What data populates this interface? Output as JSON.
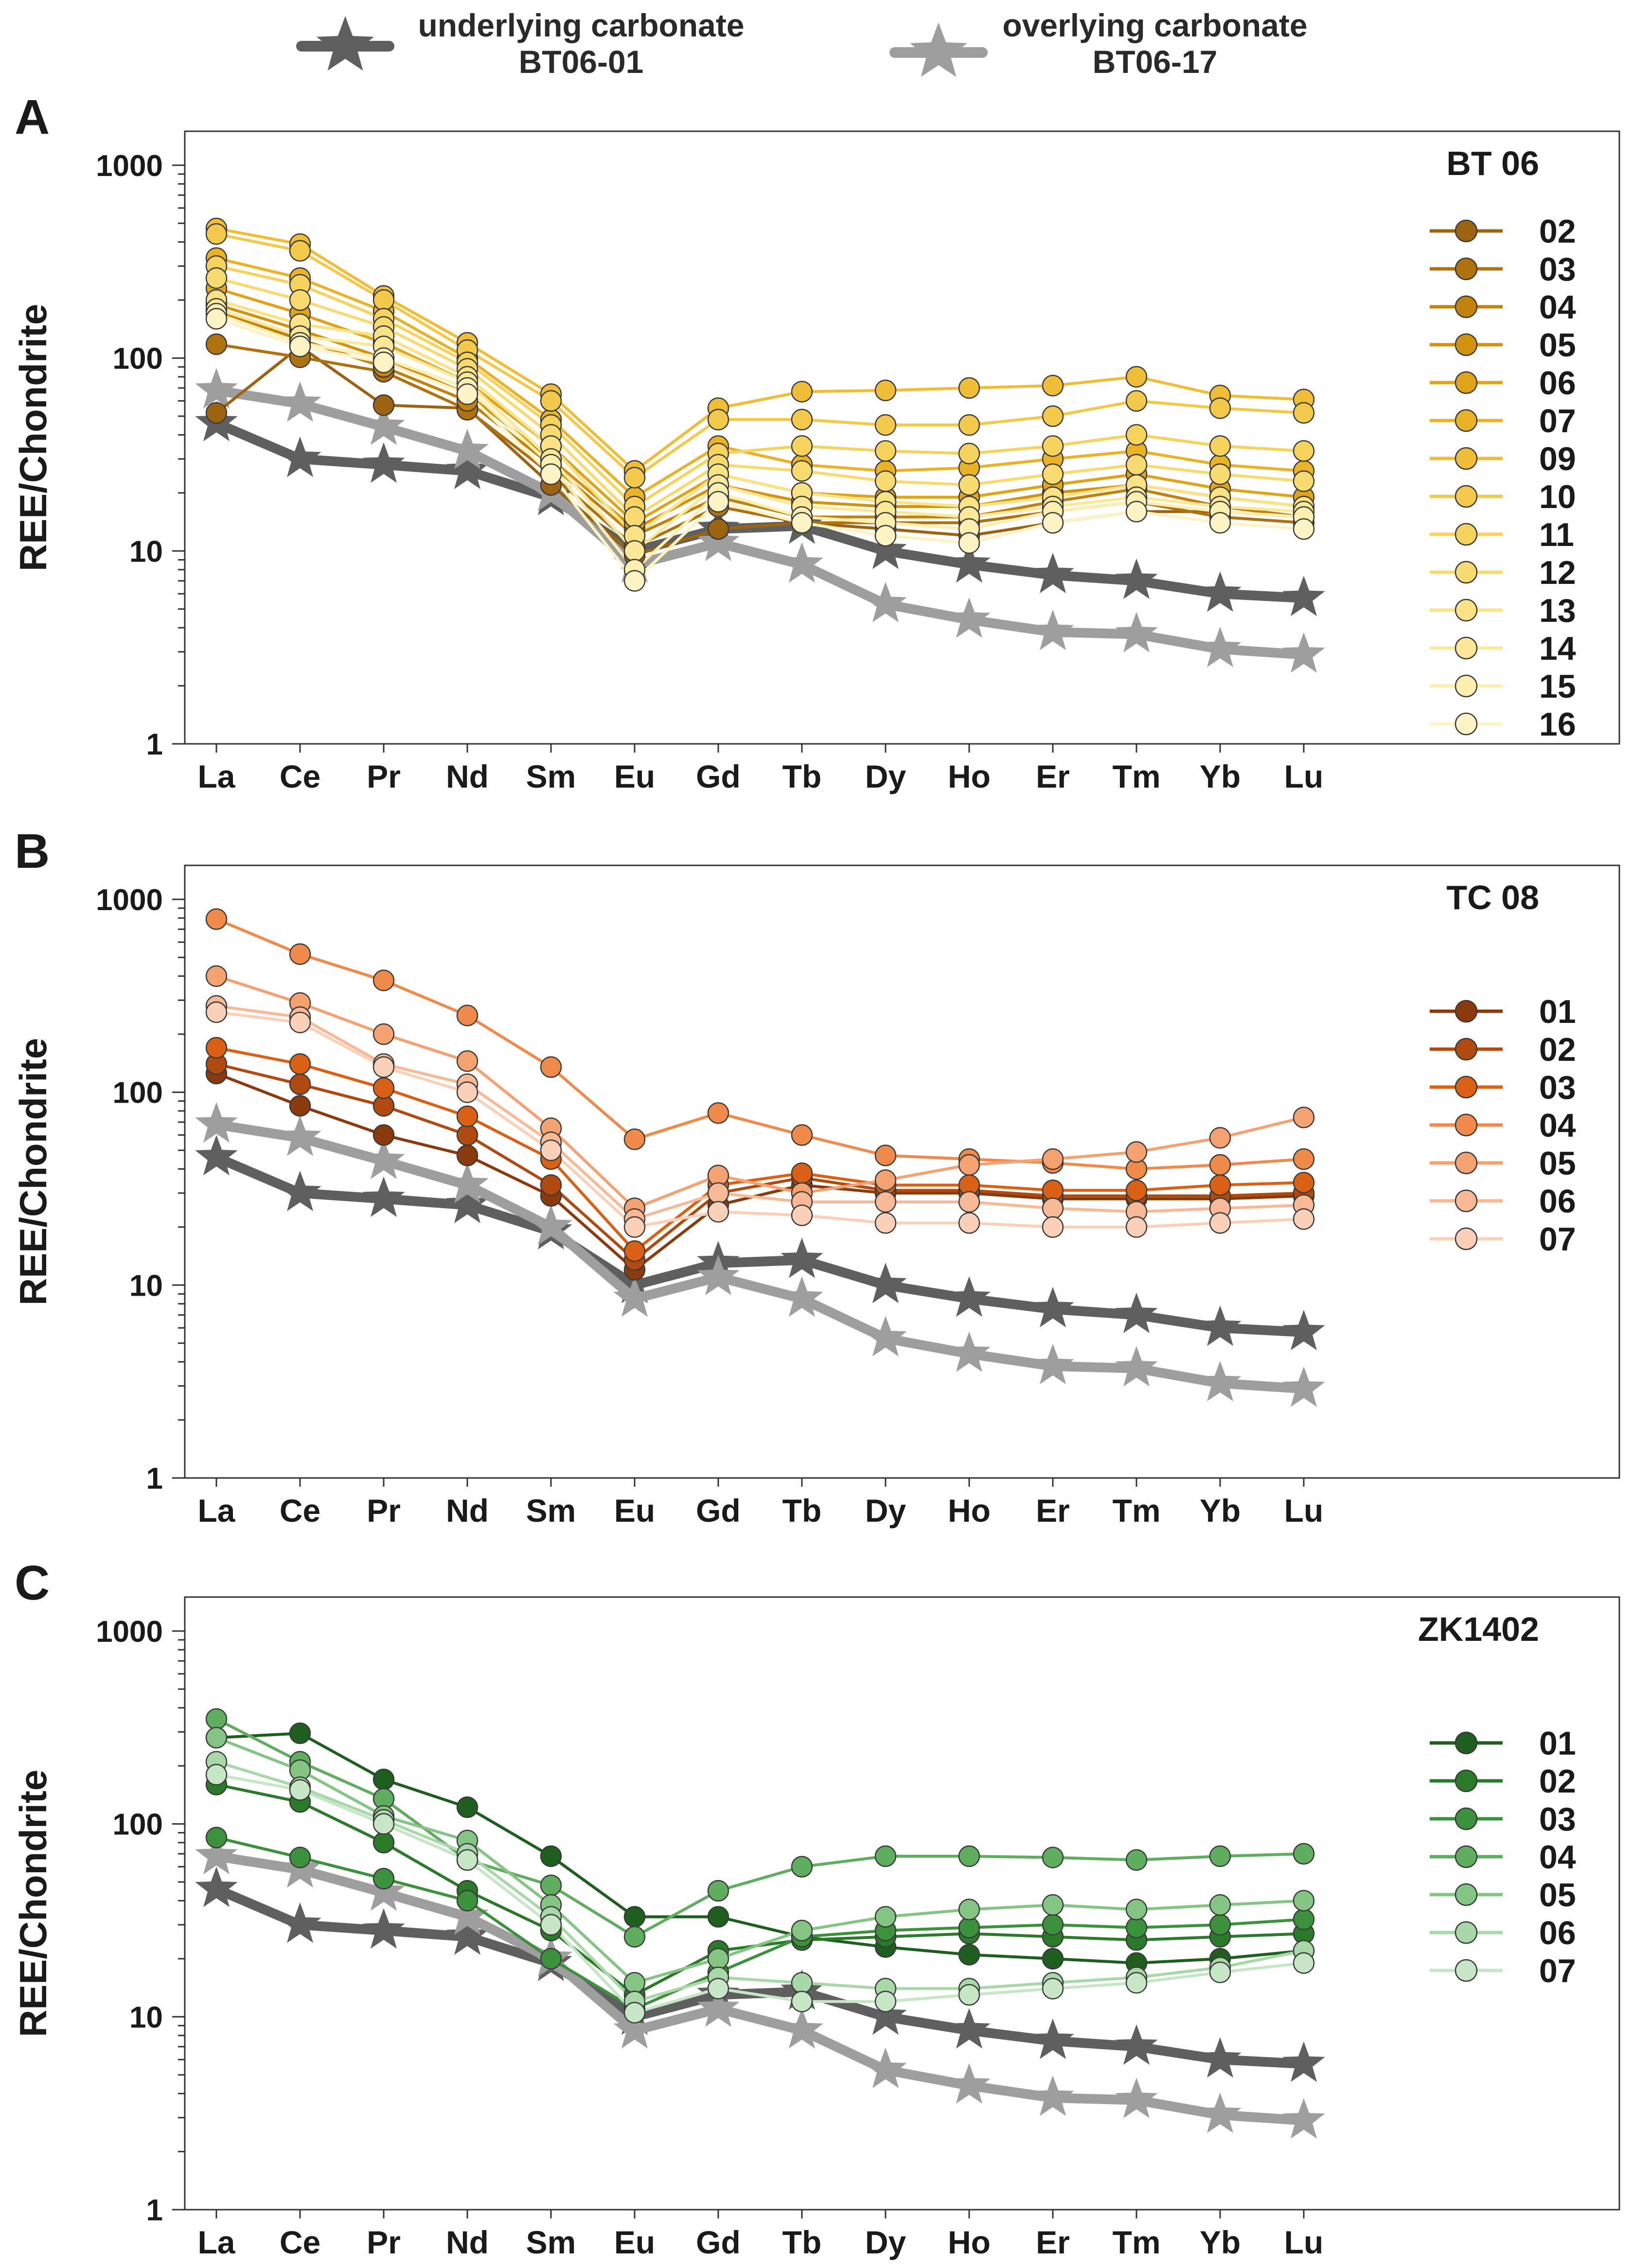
{
  "top_legend": {
    "underlying": {
      "line1": "underlying carbonate",
      "line2": "BT06-01",
      "color": "#5f5f5f"
    },
    "overlying": {
      "line1": "overlying carbonate",
      "line2": "BT06-17",
      "color": "#9e9e9e"
    }
  },
  "chart_data": [
    {
      "type": "line",
      "panel": "A",
      "title": "BT 06",
      "xlabel": "",
      "ylabel": "REE/Chondrite",
      "yscale": "log",
      "ylim": [
        1,
        1500
      ],
      "yticks": [
        "1",
        "10",
        "100",
        "1000"
      ],
      "categories": [
        "La",
        "Ce",
        "Pr",
        "Nd",
        "Sm",
        "Eu",
        "Gd",
        "Tb",
        "Dy",
        "Ho",
        "Er",
        "Tm",
        "Yb",
        "Lu"
      ],
      "reference_series": [
        {
          "name": "underlying carbonate BT06-01",
          "color": "#5f5f5f",
          "values": [
            46,
            30,
            28,
            26,
            19,
            10,
            13,
            13.5,
            10,
            8.5,
            7.5,
            7,
            6,
            5.7
          ]
        },
        {
          "name": "overlying carbonate BT06-17",
          "color": "#9e9e9e",
          "values": [
            68,
            58,
            44,
            33,
            20,
            8.5,
            11,
            8.5,
            5.3,
            4.4,
            3.8,
            3.7,
            3.1,
            2.9
          ]
        }
      ],
      "series": [
        {
          "name": "02",
          "color": "#9c6410",
          "values": [
            52,
            115,
            57,
            55,
            22,
            9.5,
            13,
            14,
            13,
            12,
            14,
            16,
            16,
            15
          ]
        },
        {
          "name": "03",
          "color": "#b0720e",
          "values": [
            118,
            101,
            85,
            54,
            25,
            10.5,
            17,
            14,
            14,
            14,
            16,
            18,
            15,
            14
          ]
        },
        {
          "name": "04",
          "color": "#c2820c",
          "values": [
            175,
            125,
            90,
            60,
            28,
            12,
            19,
            15,
            15,
            15,
            18,
            21,
            17,
            15
          ]
        },
        {
          "name": "05",
          "color": "#d4930e",
          "values": [
            190,
            140,
            100,
            65,
            30,
            13,
            22,
            18,
            17,
            17,
            20,
            22,
            19,
            17
          ]
        },
        {
          "name": "06",
          "color": "#e0a41a",
          "values": [
            230,
            170,
            120,
            75,
            35,
            14,
            25,
            20,
            19,
            19,
            22,
            25,
            21,
            19
          ]
        },
        {
          "name": "07",
          "color": "#e9b227",
          "values": [
            330,
            260,
            175,
            100,
            48,
            19,
            35,
            28,
            26,
            27,
            30,
            33,
            28,
            26
          ]
        },
        {
          "name": "09",
          "color": "#efbd38",
          "values": [
            470,
            390,
            210,
            120,
            65,
            26,
            55,
            67,
            68,
            70,
            72,
            80,
            64,
            61
          ]
        },
        {
          "name": "10",
          "color": "#f3c94b",
          "values": [
            440,
            360,
            200,
            110,
            60,
            24,
            48,
            48,
            45,
            45,
            50,
            60,
            55,
            52
          ]
        },
        {
          "name": "11",
          "color": "#f6d35d",
          "values": [
            300,
            240,
            160,
            95,
            45,
            17,
            32,
            35,
            33,
            32,
            35,
            40,
            35,
            33
          ]
        },
        {
          "name": "12",
          "color": "#f8db70",
          "values": [
            260,
            200,
            145,
            88,
            40,
            15,
            28,
            26,
            23,
            22,
            25,
            28,
            25,
            23
          ]
        },
        {
          "name": "13",
          "color": "#fae384",
          "values": [
            200,
            150,
            130,
            80,
            35,
            12,
            25,
            20,
            18,
            17,
            19,
            22,
            19,
            17
          ]
        },
        {
          "name": "14",
          "color": "#fbe999",
          "values": [
            180,
            130,
            115,
            75,
            30,
            10,
            22,
            17,
            16,
            15,
            17,
            19,
            17,
            16
          ]
        },
        {
          "name": "15",
          "color": "#fcefb0",
          "values": [
            170,
            120,
            100,
            70,
            28,
            8,
            20,
            15,
            14,
            13,
            16,
            18,
            16,
            15
          ]
        },
        {
          "name": "16",
          "color": "#fdf3c4",
          "values": [
            160,
            115,
            95,
            65,
            25,
            7,
            18,
            14,
            12,
            11,
            14,
            16,
            14,
            13
          ]
        }
      ],
      "legend_position": "right"
    },
    {
      "type": "line",
      "panel": "B",
      "title": "TC 08",
      "xlabel": "",
      "ylabel": "REE/Chondrite",
      "yscale": "log",
      "ylim": [
        1,
        1500
      ],
      "yticks": [
        "1",
        "10",
        "100",
        "1000"
      ],
      "categories": [
        "La",
        "Ce",
        "Pr",
        "Nd",
        "Sm",
        "Eu",
        "Gd",
        "Tb",
        "Dy",
        "Ho",
        "Er",
        "Tm",
        "Yb",
        "Lu"
      ],
      "reference_series": [
        {
          "name": "underlying carbonate BT06-01",
          "color": "#5f5f5f",
          "values": [
            46,
            30,
            28,
            26,
            19,
            10,
            13,
            13.5,
            10,
            8.5,
            7.5,
            7,
            6,
            5.7
          ]
        },
        {
          "name": "overlying carbonate BT06-17",
          "color": "#9e9e9e",
          "values": [
            68,
            58,
            44,
            33,
            20,
            8.5,
            11,
            8.5,
            5.3,
            4.4,
            3.8,
            3.7,
            3.1,
            2.9
          ]
        }
      ],
      "series": [
        {
          "name": "01",
          "color": "#8a3a0c",
          "values": [
            125,
            85,
            60,
            47,
            29,
            12,
            26,
            33,
            30,
            30,
            28,
            28,
            28,
            29
          ]
        },
        {
          "name": "02",
          "color": "#b04a10",
          "values": [
            140,
            110,
            85,
            60,
            33,
            13.5,
            30,
            36,
            31,
            31,
            29,
            29,
            29,
            30
          ]
        },
        {
          "name": "03",
          "color": "#d96015",
          "values": [
            170,
            140,
            105,
            75,
            45,
            15,
            33,
            38,
            33,
            33,
            31,
            31,
            33,
            34
          ]
        },
        {
          "name": "04",
          "color": "#ef8a4a",
          "values": [
            790,
            520,
            380,
            250,
            135,
            57,
            78,
            60,
            47,
            45,
            43,
            40,
            42,
            45
          ]
        },
        {
          "name": "05",
          "color": "#f4a272",
          "values": [
            400,
            290,
            200,
            145,
            65,
            25,
            37,
            30,
            35,
            42,
            45,
            49,
            58,
            74
          ]
        },
        {
          "name": "06",
          "color": "#f7b996",
          "values": [
            280,
            245,
            140,
            110,
            55,
            22,
            30,
            27,
            27,
            27,
            25,
            24,
            25,
            26
          ]
        },
        {
          "name": "07",
          "color": "#fad0b8",
          "values": [
            260,
            230,
            135,
            100,
            50,
            20,
            24,
            23,
            21,
            21,
            20,
            20,
            21,
            22
          ]
        }
      ],
      "legend_position": "right"
    },
    {
      "type": "line",
      "panel": "C",
      "title": "ZK1402",
      "xlabel": "",
      "ylabel": "REE/Chondrite",
      "yscale": "log",
      "ylim": [
        1,
        1500
      ],
      "yticks": [
        "1",
        "10",
        "100",
        "1000"
      ],
      "categories": [
        "La",
        "Ce",
        "Pr",
        "Nd",
        "Sm",
        "Eu",
        "Gd",
        "Tb",
        "Dy",
        "Ho",
        "Er",
        "Tm",
        "Yb",
        "Lu"
      ],
      "reference_series": [
        {
          "name": "underlying carbonate BT06-01",
          "color": "#5f5f5f",
          "values": [
            46,
            30,
            28,
            26,
            19,
            10,
            13,
            13.5,
            10,
            8.5,
            7.5,
            7,
            6,
            5.7
          ]
        },
        {
          "name": "overlying carbonate BT06-17",
          "color": "#9e9e9e",
          "values": [
            68,
            58,
            44,
            33,
            20,
            8.5,
            11,
            8.5,
            5.3,
            4.4,
            3.8,
            3.7,
            3.1,
            2.9
          ]
        }
      ],
      "series": [
        {
          "name": "01",
          "color": "#1e5e1e",
          "values": [
            280,
            295,
            170,
            122,
            68,
            33,
            33,
            26,
            23,
            21,
            20,
            19,
            20,
            22
          ]
        },
        {
          "name": "02",
          "color": "#2a7a2a",
          "values": [
            160,
            130,
            80,
            45,
            28,
            13,
            22,
            25,
            26,
            27,
            26,
            25,
            26,
            27
          ]
        },
        {
          "name": "03",
          "color": "#3c923c",
          "values": [
            85,
            67,
            52,
            40,
            20,
            11,
            17,
            26,
            28,
            29,
            30,
            29,
            30,
            32
          ]
        },
        {
          "name": "04",
          "color": "#5fae5f",
          "values": [
            350,
            210,
            135,
            65,
            48,
            26,
            45,
            60,
            68,
            68,
            67,
            65,
            68,
            70
          ]
        },
        {
          "name": "05",
          "color": "#84c584",
          "values": [
            280,
            190,
            110,
            82,
            38,
            15,
            20,
            28,
            33,
            36,
            38,
            36,
            38,
            40
          ]
        },
        {
          "name": "06",
          "color": "#a8d8a8",
          "values": [
            210,
            155,
            105,
            70,
            33,
            12,
            16,
            15,
            14,
            14,
            15,
            16,
            18,
            22
          ]
        },
        {
          "name": "07",
          "color": "#c6e6c6",
          "values": [
            180,
            150,
            100,
            65,
            30,
            10.5,
            14,
            12,
            12,
            13,
            14,
            15,
            17,
            19
          ]
        }
      ],
      "legend_position": "right"
    }
  ]
}
